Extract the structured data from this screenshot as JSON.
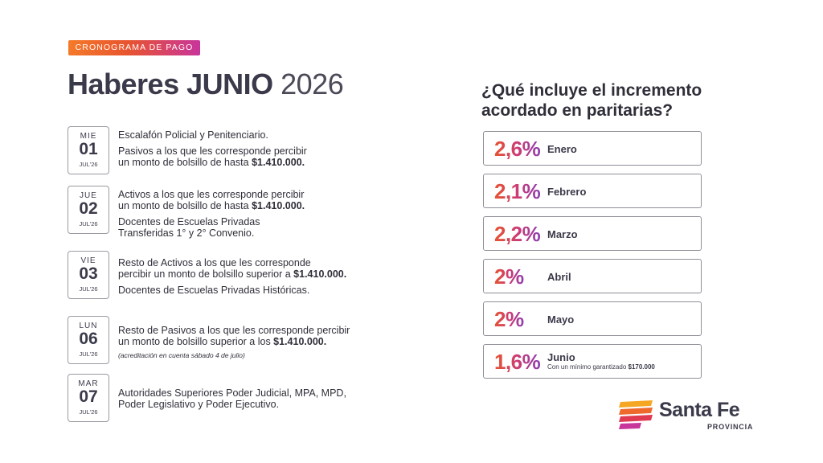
{
  "header": {
    "badge": "CRONOGRAMA DE PAGO",
    "title_bold": "Haberes JUNIO",
    "title_year": "2026"
  },
  "schedule": [
    {
      "dow": "MIE",
      "day": "01",
      "month": "JUL'26",
      "lines": [
        {
          "text": "Escalafón Policial y Penitenciario.",
          "amount": "",
          "gap_after": true
        },
        {
          "text": "Pasivos a los que les corresponde percibir",
          "amount": "",
          "gap_after": false
        },
        {
          "text": "un monto de bolsillo de hasta ",
          "amount": "$1.410.000.",
          "gap_after": false
        }
      ],
      "note": ""
    },
    {
      "dow": "JUE",
      "day": "02",
      "month": "JUL'26",
      "lines": [
        {
          "text": "Activos a los que les corresponde percibir",
          "amount": "",
          "gap_after": false
        },
        {
          "text": "un monto de bolsillo de hasta ",
          "amount": "$1.410.000.",
          "gap_after": true
        },
        {
          "text": "Docentes de Escuelas Privadas",
          "amount": "",
          "gap_after": false
        },
        {
          "text": "Transferidas 1° y 2° Convenio.",
          "amount": "",
          "gap_after": false
        }
      ],
      "note": ""
    },
    {
      "dow": "VIE",
      "day": "03",
      "month": "JUL'26",
      "lines": [
        {
          "text": "Resto de Activos a los que les corresponde",
          "amount": "",
          "gap_after": false
        },
        {
          "text": "percibir un monto de bolsillo superior a ",
          "amount": "$1.410.000.",
          "gap_after": true
        },
        {
          "text": "Docentes de Escuelas Privadas Históricas.",
          "amount": "",
          "gap_after": false
        }
      ],
      "note": ""
    },
    {
      "dow": "LUN",
      "day": "06",
      "month": "JUL'26",
      "lines": [
        {
          "text": "Resto de Pasivos a los que les corresponde percibir",
          "amount": "",
          "gap_after": false
        },
        {
          "text": "un monto de bolsillo superior a los ",
          "amount": "$1.410.000.",
          "gap_after": false
        }
      ],
      "note": "(acreditación en cuenta sábado 4 de julio)"
    },
    {
      "dow": "MAR",
      "day": "07",
      "month": "JUL'26",
      "lines": [
        {
          "text": "Autoridades Superiores Poder Judicial, MPA, MPD,",
          "amount": "",
          "gap_after": false
        },
        {
          "text": "Poder Legislativo y Poder Ejecutivo.",
          "amount": "",
          "gap_after": false
        }
      ],
      "note": ""
    }
  ],
  "increments": {
    "title_line1": "¿Qué incluye el  incremento",
    "title_line2": "acordado en paritarias?",
    "items": [
      {
        "pct": "2,6%",
        "month": "Enero",
        "sub_text": "",
        "sub_amount": ""
      },
      {
        "pct": "2,1%",
        "month": "Febrero",
        "sub_text": "",
        "sub_amount": ""
      },
      {
        "pct": "2,2%",
        "month": "Marzo",
        "sub_text": "",
        "sub_amount": ""
      },
      {
        "pct": "2%",
        "month": "Abril",
        "sub_text": "",
        "sub_amount": ""
      },
      {
        "pct": "2%",
        "month": "Mayo",
        "sub_text": "",
        "sub_amount": ""
      },
      {
        "pct": "1,6%",
        "month": "Junio",
        "sub_text": "Con un mínimo garantizado ",
        "sub_amount": "$170.000"
      }
    ]
  },
  "brand": {
    "name": "Santa Fe",
    "subtitle": "PROVINCIA",
    "colors": [
      "#f5a623",
      "#ee6a2c",
      "#e03a52",
      "#c8359b"
    ]
  }
}
